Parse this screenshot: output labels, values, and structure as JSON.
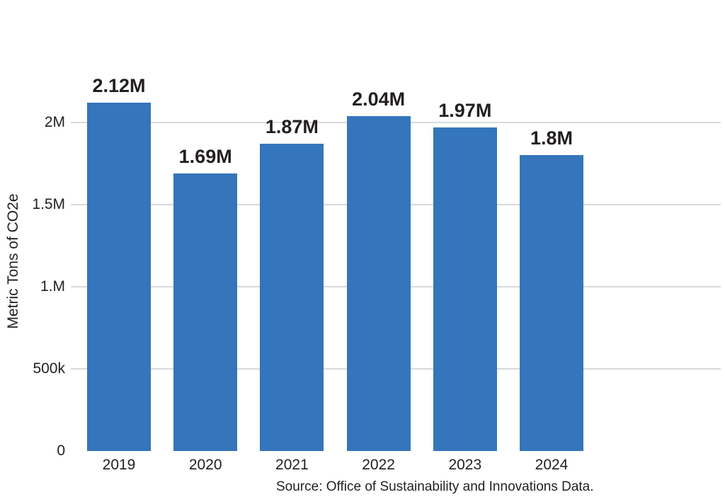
{
  "chart_data": {
    "type": "bar",
    "title": "",
    "xlabel": "",
    "ylabel": "Metric Tons of CO2e",
    "categories": [
      "2019",
      "2020",
      "2021",
      "2022",
      "2023",
      "2024"
    ],
    "values": [
      2120000,
      1690000,
      1870000,
      2040000,
      1970000,
      1800000
    ],
    "value_labels": [
      "2.12M",
      "1.69M",
      "1.87M",
      "2.04M",
      "1.97M",
      "1.8M"
    ],
    "ylim": [
      0,
      2300000
    ],
    "yticks": [
      {
        "label": "0",
        "value": 0
      },
      {
        "label": "500k",
        "value": 500000
      },
      {
        "label": "1.M",
        "value": 1000000
      },
      {
        "label": "1.5M",
        "value": 1500000
      },
      {
        "label": "2M",
        "value": 2000000
      }
    ],
    "grid": "horizontal",
    "legend": "none",
    "source": "Source: Office of Sustainability and Innovations Data.",
    "bar_color": "#3575BC",
    "gridline_color": "#D9D9D9",
    "label_color": "#231F20"
  }
}
